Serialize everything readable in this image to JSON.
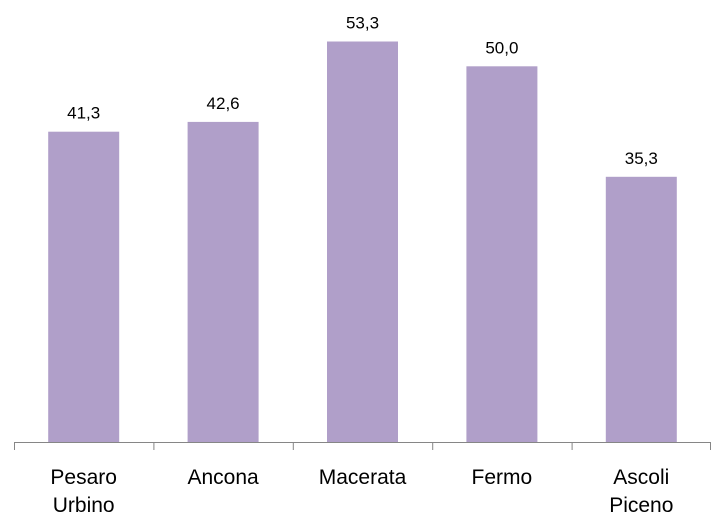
{
  "chart_data": {
    "type": "bar",
    "categories": [
      [
        "Pesaro",
        "Urbino"
      ],
      [
        "Ancona"
      ],
      [
        "Macerata"
      ],
      [
        "Fermo"
      ],
      [
        "Ascoli",
        "Piceno"
      ]
    ],
    "values": [
      41.3,
      42.6,
      53.3,
      50.0,
      35.3
    ],
    "value_labels": [
      "41,3",
      "42,6",
      "53,3",
      "50,0",
      "35,3"
    ],
    "title": "",
    "xlabel": "",
    "ylabel": "",
    "ylim": [
      0,
      56
    ],
    "grid": false,
    "legend": "none",
    "colors": {
      "bar": "#b09fc9",
      "axis": "#868686"
    }
  }
}
